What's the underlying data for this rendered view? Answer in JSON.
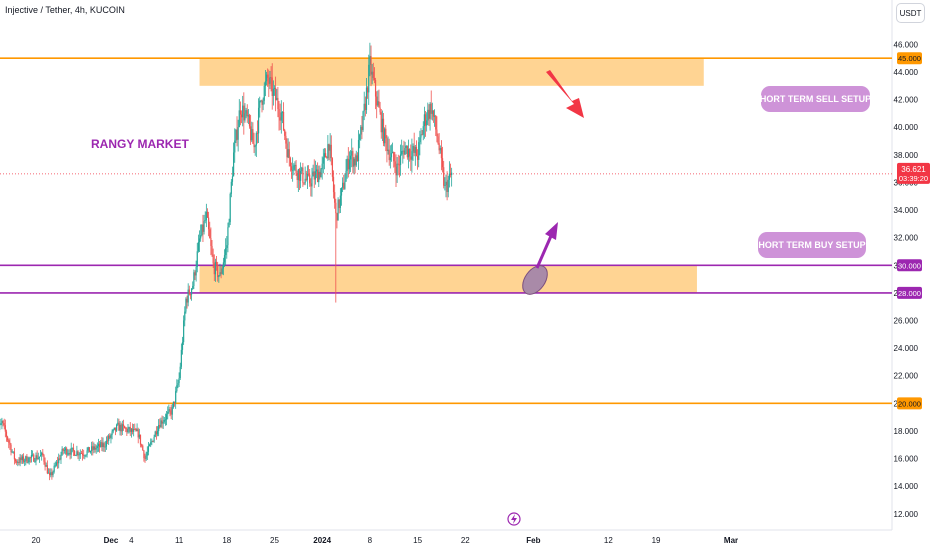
{
  "header": {
    "title": "Injective / Tether, 4h, KUCOIN",
    "currency_label": "USDT"
  },
  "annotations": {
    "rangy_market": "RANGY MARKET",
    "sell_setups": "SHORT TERM SELL SETUPS",
    "buy_setups": "SHORT TERM BUY SETUPS"
  },
  "colors": {
    "up": "#26a69a",
    "down": "#ef5350",
    "zone_fill": "#ffcc80",
    "level_orange": "#ff9800",
    "level_purple": "#9c27b0",
    "pill": "#ce93d8",
    "arrow_red": "#f23645",
    "arrow_purple": "#9c27b0"
  },
  "chart_data": {
    "type": "candlestick",
    "symbol": "Injective / Tether",
    "interval": "4h",
    "exchange": "KUCOIN",
    "y_axis": {
      "ticks": [
        12,
        14,
        16,
        18,
        20,
        22,
        24,
        26,
        28,
        30,
        32,
        34,
        36,
        38,
        40,
        42,
        44,
        46
      ],
      "tick_labels": [
        "12.000",
        "14.000",
        "16.000",
        "18.000",
        "20.000",
        "22.000",
        "24.000",
        "26.000",
        "28.000",
        "30.000",
        "32.000",
        "34.000",
        "36.000",
        "38.000",
        "40.000",
        "42.000",
        "44.000",
        "46.000"
      ],
      "range": [
        11.2,
        48.0
      ]
    },
    "x_axis": {
      "tick_labels": [
        "20",
        "Dec",
        "4",
        "11",
        "18",
        "25",
        "2024",
        "8",
        "15",
        "22",
        "Feb",
        "12",
        "19",
        "Mar"
      ],
      "tick_dates": [
        "2023-11-20",
        "2023-12-01",
        "2023-12-04",
        "2023-12-11",
        "2023-12-18",
        "2023-12-25",
        "2024-01-01",
        "2024-01-08",
        "2024-01-15",
        "2024-01-22",
        "2024-02-01",
        "2024-02-12",
        "2024-02-19",
        "2024-03-01"
      ]
    },
    "current_price": {
      "value": "36.621",
      "countdown": "03:39:20"
    },
    "levels": [
      {
        "label": "45.000",
        "price": 45.0,
        "color": "orange"
      },
      {
        "label": "30.000",
        "price": 30.0,
        "color": "purple"
      },
      {
        "label": "28.000",
        "price": 28.0,
        "color": "purple"
      },
      {
        "label": "20.000",
        "price": 20.0,
        "color": "orange"
      }
    ],
    "zones": [
      {
        "name": "sell zone",
        "from_price": 43.0,
        "to_price": 45.0,
        "from_date": "2023-12-14",
        "to_date": "2024-02-26"
      },
      {
        "name": "buy zone",
        "from_price": 28.0,
        "to_price": 30.0,
        "from_date": "2023-12-14",
        "to_date": "2024-02-25"
      }
    ],
    "price_path": [
      {
        "date": "2023-11-14",
        "price": 17.5
      },
      {
        "date": "2023-11-15",
        "price": 18.6
      },
      {
        "date": "2023-11-17",
        "price": 15.8
      },
      {
        "date": "2023-11-21",
        "price": 16.2
      },
      {
        "date": "2023-11-22",
        "price": 14.6
      },
      {
        "date": "2023-11-24",
        "price": 16.6
      },
      {
        "date": "2023-11-27",
        "price": 16.4
      },
      {
        "date": "2023-11-30",
        "price": 17.0
      },
      {
        "date": "2023-12-02",
        "price": 18.3
      },
      {
        "date": "2023-12-05",
        "price": 17.8
      },
      {
        "date": "2023-12-06",
        "price": 16.0
      },
      {
        "date": "2023-12-08",
        "price": 18.5
      },
      {
        "date": "2023-12-10",
        "price": 19.5
      },
      {
        "date": "2023-12-11",
        "price": 21.8
      },
      {
        "date": "2023-12-12",
        "price": 27.5
      },
      {
        "date": "2023-12-13",
        "price": 28.6
      },
      {
        "date": "2023-12-14",
        "price": 31.8
      },
      {
        "date": "2023-12-15",
        "price": 33.5
      },
      {
        "date": "2023-12-16",
        "price": 30.0
      },
      {
        "date": "2023-12-17",
        "price": 29.2
      },
      {
        "date": "2023-12-18",
        "price": 31.5
      },
      {
        "date": "2023-12-19",
        "price": 38.0
      },
      {
        "date": "2023-12-20",
        "price": 41.5
      },
      {
        "date": "2023-12-21",
        "price": 40.5
      },
      {
        "date": "2023-12-22",
        "price": 38.5
      },
      {
        "date": "2023-12-23",
        "price": 42.0
      },
      {
        "date": "2023-12-24",
        "price": 43.5
      },
      {
        "date": "2023-12-26",
        "price": 41.0
      },
      {
        "date": "2023-12-27",
        "price": 38.0
      },
      {
        "date": "2023-12-28",
        "price": 37.0
      },
      {
        "date": "2023-12-30",
        "price": 36.0
      },
      {
        "date": "2024-01-01",
        "price": 37.0
      },
      {
        "date": "2024-01-02",
        "price": 39.0
      },
      {
        "date": "2024-01-03",
        "price": 33.5
      },
      {
        "date": "2024-01-04",
        "price": 35.5
      },
      {
        "date": "2024-01-05",
        "price": 38.0
      },
      {
        "date": "2024-01-06",
        "price": 37.5
      },
      {
        "date": "2024-01-07",
        "price": 40.5
      },
      {
        "date": "2024-01-08",
        "price": 44.5
      },
      {
        "date": "2024-01-09",
        "price": 42.0
      },
      {
        "date": "2024-01-10",
        "price": 39.5
      },
      {
        "date": "2024-01-11",
        "price": 38.0
      },
      {
        "date": "2024-01-12",
        "price": 37.0
      },
      {
        "date": "2024-01-13",
        "price": 38.5
      },
      {
        "date": "2024-01-15",
        "price": 38.0
      },
      {
        "date": "2024-01-16",
        "price": 40.5
      },
      {
        "date": "2024-01-17",
        "price": 41.5
      },
      {
        "date": "2024-01-18",
        "price": 39.0
      },
      {
        "date": "2024-01-19",
        "price": 35.5
      },
      {
        "date": "2024-01-20",
        "price": 36.6
      }
    ]
  }
}
